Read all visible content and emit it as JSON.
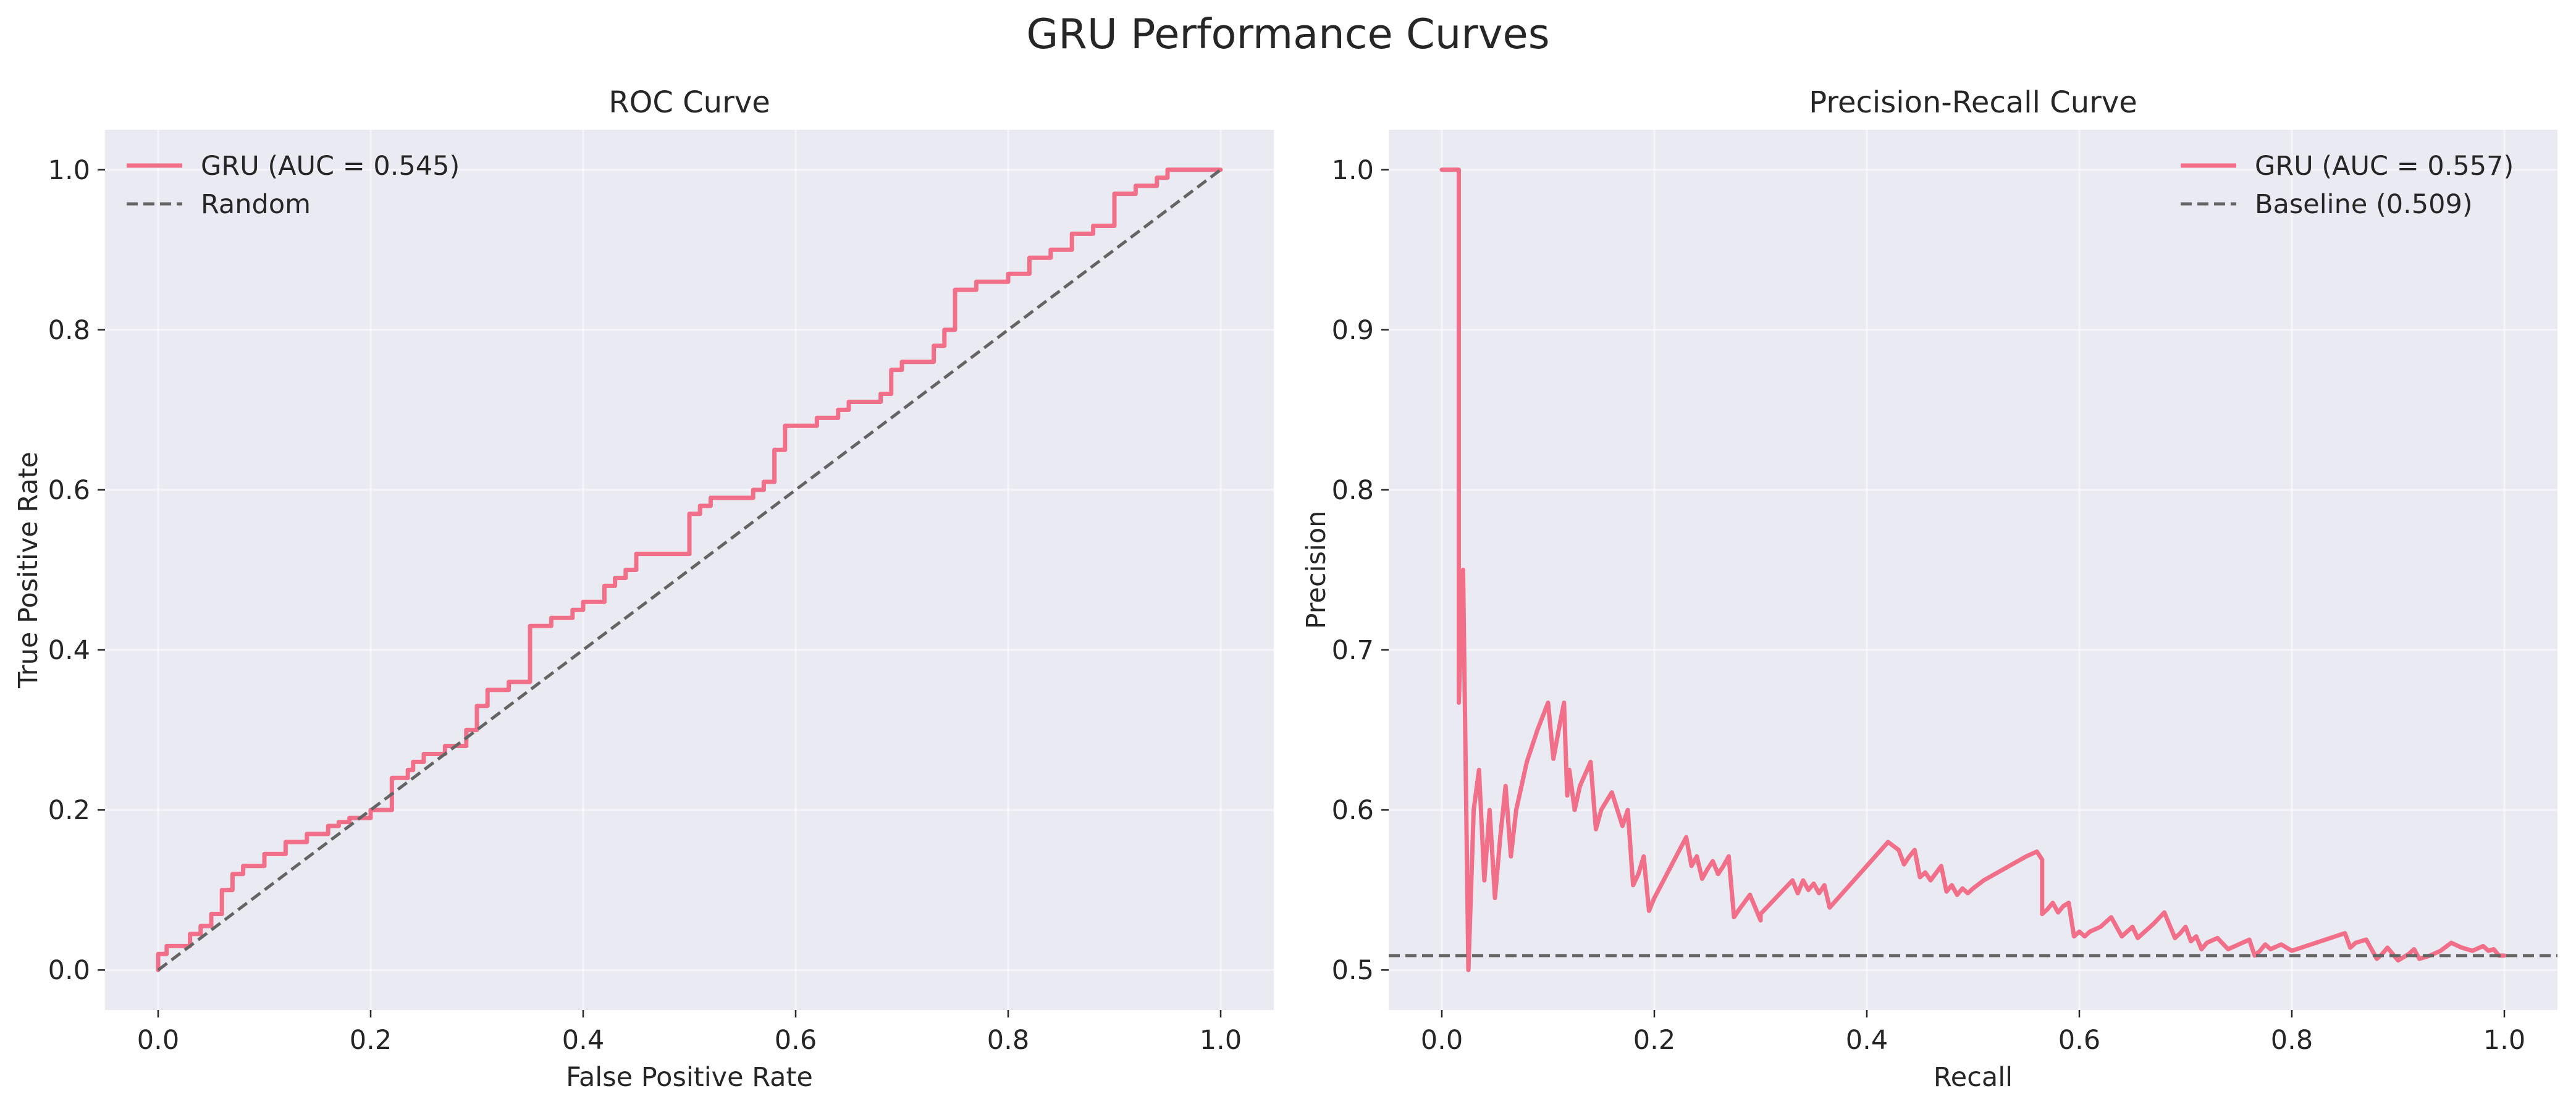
{
  "figure": {
    "title": "GRU Performance Curves"
  },
  "colors": {
    "curve": "#f16f88",
    "reference": "#646464",
    "panel_background": "#eaeaf2",
    "grid": "#ffffff"
  },
  "chart_data": [
    {
      "type": "line",
      "title": "ROC Curve",
      "xlabel": "False Positive Rate",
      "ylabel": "True Positive Rate",
      "xlim": [
        -0.05,
        1.05
      ],
      "ylim": [
        -0.05,
        1.05
      ],
      "xticks": [
        0.0,
        0.2,
        0.4,
        0.6,
        0.8,
        1.0
      ],
      "yticks": [
        0.0,
        0.2,
        0.4,
        0.6,
        0.8,
        1.0
      ],
      "xtick_labels": [
        "0.0",
        "0.2",
        "0.4",
        "0.6",
        "0.8",
        "1.0"
      ],
      "ytick_labels": [
        "0.0",
        "0.2",
        "0.4",
        "0.6",
        "0.8",
        "1.0"
      ],
      "grid": true,
      "legend_position": "top-left",
      "series": [
        {
          "name": "GRU (AUC = 0.545)",
          "style": "solid",
          "color": "#f16f88",
          "x": [
            0.0,
            0.0,
            0.008,
            0.008,
            0.03,
            0.03,
            0.04,
            0.04,
            0.05,
            0.05,
            0.06,
            0.06,
            0.07,
            0.07,
            0.08,
            0.08,
            0.1,
            0.1,
            0.12,
            0.12,
            0.14,
            0.14,
            0.16,
            0.16,
            0.17,
            0.17,
            0.18,
            0.18,
            0.2,
            0.2,
            0.22,
            0.22,
            0.235,
            0.235,
            0.24,
            0.24,
            0.25,
            0.25,
            0.27,
            0.27,
            0.29,
            0.29,
            0.3,
            0.3,
            0.31,
            0.31,
            0.33,
            0.33,
            0.35,
            0.35,
            0.37,
            0.37,
            0.39,
            0.39,
            0.4,
            0.4,
            0.42,
            0.42,
            0.43,
            0.43,
            0.44,
            0.44,
            0.45,
            0.45,
            0.5,
            0.5,
            0.51,
            0.51,
            0.52,
            0.52,
            0.56,
            0.56,
            0.57,
            0.57,
            0.58,
            0.58,
            0.59,
            0.59,
            0.62,
            0.62,
            0.64,
            0.64,
            0.65,
            0.65,
            0.68,
            0.68,
            0.69,
            0.69,
            0.7,
            0.7,
            0.73,
            0.73,
            0.74,
            0.74,
            0.75,
            0.75,
            0.77,
            0.77,
            0.8,
            0.8,
            0.82,
            0.82,
            0.84,
            0.84,
            0.86,
            0.86,
            0.88,
            0.88,
            0.9,
            0.9,
            0.92,
            0.92,
            0.94,
            0.94,
            0.95,
            0.95,
            0.96,
            0.96,
            0.97,
            0.97,
            0.98,
            0.98,
            1.0
          ],
          "y": [
            0.0,
            0.02,
            0.02,
            0.03,
            0.03,
            0.045,
            0.045,
            0.055,
            0.055,
            0.07,
            0.07,
            0.1,
            0.1,
            0.12,
            0.12,
            0.13,
            0.13,
            0.145,
            0.145,
            0.16,
            0.16,
            0.17,
            0.17,
            0.18,
            0.18,
            0.185,
            0.185,
            0.19,
            0.19,
            0.2,
            0.2,
            0.24,
            0.24,
            0.25,
            0.25,
            0.26,
            0.26,
            0.27,
            0.27,
            0.28,
            0.28,
            0.3,
            0.3,
            0.33,
            0.33,
            0.35,
            0.35,
            0.36,
            0.36,
            0.43,
            0.43,
            0.44,
            0.44,
            0.45,
            0.45,
            0.46,
            0.46,
            0.48,
            0.48,
            0.49,
            0.49,
            0.5,
            0.5,
            0.52,
            0.52,
            0.57,
            0.57,
            0.58,
            0.58,
            0.59,
            0.59,
            0.6,
            0.6,
            0.61,
            0.61,
            0.65,
            0.65,
            0.68,
            0.68,
            0.69,
            0.69,
            0.7,
            0.7,
            0.71,
            0.71,
            0.72,
            0.72,
            0.75,
            0.75,
            0.76,
            0.76,
            0.78,
            0.78,
            0.8,
            0.8,
            0.85,
            0.85,
            0.86,
            0.86,
            0.87,
            0.87,
            0.89,
            0.89,
            0.9,
            0.9,
            0.92,
            0.92,
            0.93,
            0.93,
            0.97,
            0.97,
            0.98,
            0.98,
            0.99,
            0.99,
            1.0,
            1.0,
            1.0,
            1.0,
            1.0,
            1.0,
            1.0,
            1.0
          ]
        },
        {
          "name": "Random",
          "style": "dashed",
          "color": "#646464",
          "x": [
            0.0,
            1.0
          ],
          "y": [
            0.0,
            1.0
          ]
        }
      ]
    },
    {
      "type": "line",
      "title": "Precision-Recall Curve",
      "xlabel": "Recall",
      "ylabel": "Precision",
      "xlim": [
        -0.05,
        1.05
      ],
      "ylim": [
        0.475,
        1.025
      ],
      "xticks": [
        0.0,
        0.2,
        0.4,
        0.6,
        0.8,
        1.0
      ],
      "yticks": [
        0.5,
        0.6,
        0.7,
        0.8,
        0.9,
        1.0
      ],
      "xtick_labels": [
        "0.0",
        "0.2",
        "0.4",
        "0.6",
        "0.8",
        "1.0"
      ],
      "ytick_labels": [
        "0.5",
        "0.6",
        "0.7",
        "0.8",
        "0.9",
        "1.0"
      ],
      "grid": true,
      "legend_position": "top-right",
      "series": [
        {
          "name": "GRU (AUC = 0.557)",
          "style": "solid",
          "color": "#f16f88",
          "x": [
            0.0,
            0.016,
            0.016,
            0.02,
            0.025,
            0.026,
            0.03,
            0.035,
            0.04,
            0.045,
            0.05,
            0.055,
            0.06,
            0.065,
            0.07,
            0.08,
            0.09,
            0.1,
            0.105,
            0.11,
            0.115,
            0.118,
            0.12,
            0.125,
            0.13,
            0.14,
            0.145,
            0.15,
            0.16,
            0.17,
            0.175,
            0.18,
            0.185,
            0.19,
            0.195,
            0.2,
            0.23,
            0.235,
            0.24,
            0.245,
            0.25,
            0.255,
            0.26,
            0.265,
            0.27,
            0.275,
            0.28,
            0.29,
            0.3,
            0.3,
            0.33,
            0.335,
            0.34,
            0.345,
            0.35,
            0.355,
            0.36,
            0.365,
            0.42,
            0.43,
            0.435,
            0.44,
            0.445,
            0.45,
            0.455,
            0.46,
            0.47,
            0.475,
            0.48,
            0.485,
            0.49,
            0.495,
            0.5,
            0.51,
            0.55,
            0.56,
            0.565,
            0.565,
            0.57,
            0.575,
            0.58,
            0.585,
            0.59,
            0.595,
            0.6,
            0.605,
            0.61,
            0.62,
            0.63,
            0.64,
            0.645,
            0.65,
            0.655,
            0.66,
            0.67,
            0.68,
            0.69,
            0.695,
            0.7,
            0.705,
            0.71,
            0.715,
            0.72,
            0.73,
            0.74,
            0.75,
            0.76,
            0.765,
            0.77,
            0.775,
            0.78,
            0.79,
            0.8,
            0.85,
            0.855,
            0.86,
            0.87,
            0.88,
            0.885,
            0.89,
            0.9,
            0.91,
            0.915,
            0.92,
            0.93,
            0.94,
            0.95,
            0.96,
            0.97,
            0.98,
            0.985,
            0.99,
            0.995,
            1.0
          ],
          "y": [
            1.0,
            1.0,
            0.667,
            0.75,
            0.5,
            0.52,
            0.6,
            0.625,
            0.556,
            0.6,
            0.545,
            0.583,
            0.615,
            0.571,
            0.6,
            0.63,
            0.65,
            0.667,
            0.632,
            0.65,
            0.667,
            0.609,
            0.625,
            0.6,
            0.615,
            0.63,
            0.588,
            0.6,
            0.611,
            0.59,
            0.6,
            0.553,
            0.56,
            0.571,
            0.537,
            0.545,
            0.583,
            0.565,
            0.571,
            0.557,
            0.563,
            0.568,
            0.56,
            0.565,
            0.571,
            0.533,
            0.538,
            0.547,
            0.531,
            0.535,
            0.556,
            0.548,
            0.556,
            0.55,
            0.554,
            0.548,
            0.553,
            0.539,
            0.58,
            0.575,
            0.566,
            0.571,
            0.575,
            0.558,
            0.561,
            0.556,
            0.565,
            0.549,
            0.553,
            0.547,
            0.551,
            0.548,
            0.551,
            0.556,
            0.571,
            0.574,
            0.569,
            0.535,
            0.538,
            0.542,
            0.536,
            0.54,
            0.542,
            0.521,
            0.524,
            0.521,
            0.524,
            0.527,
            0.533,
            0.521,
            0.524,
            0.527,
            0.52,
            0.523,
            0.529,
            0.536,
            0.52,
            0.523,
            0.527,
            0.518,
            0.521,
            0.513,
            0.517,
            0.52,
            0.513,
            0.516,
            0.519,
            0.509,
            0.512,
            0.516,
            0.513,
            0.516,
            0.512,
            0.523,
            0.514,
            0.517,
            0.519,
            0.507,
            0.51,
            0.514,
            0.506,
            0.51,
            0.513,
            0.507,
            0.509,
            0.512,
            0.517,
            0.514,
            0.512,
            0.515,
            0.512,
            0.513,
            0.509,
            0.509
          ]
        },
        {
          "name": "Baseline (0.509)",
          "style": "dashed",
          "color": "#646464",
          "x": [
            -0.05,
            1.05
          ],
          "y": [
            0.509,
            0.509
          ]
        }
      ]
    }
  ]
}
